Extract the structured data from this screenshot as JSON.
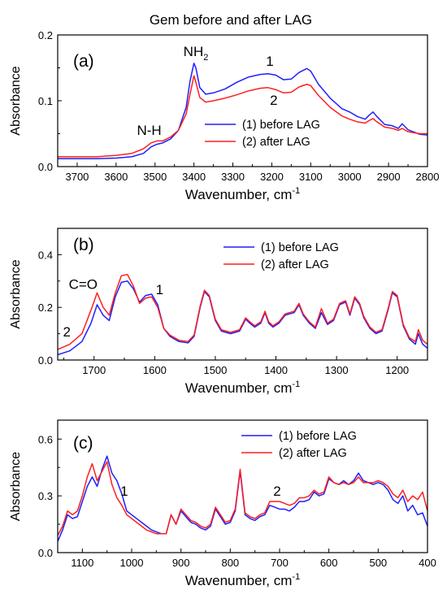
{
  "figure_title": "Gem before and after LAG",
  "chart_data": [
    {
      "type": "line",
      "panel": "(a)",
      "xlabel": "Wavenumber, cm",
      "xlabel_sup": "-1",
      "ylabel": "Absorbance",
      "xlim": [
        3750,
        2800
      ],
      "ylim": [
        0,
        0.2
      ],
      "xticks": [
        3700,
        3600,
        3500,
        3400,
        3300,
        3200,
        3100,
        3000,
        2900,
        2800
      ],
      "yticks": [
        0.0,
        0.1,
        0.2
      ],
      "ytick_labels": [
        "0.0",
        "0.1",
        "0.2"
      ],
      "legend_position": "center-right",
      "annotations": [
        {
          "text": "N-H",
          "x": 3515,
          "y": 0.048
        },
        {
          "text": "NH",
          "sub": "2",
          "x": 3395,
          "y": 0.168
        },
        {
          "text": "1",
          "x": 3205,
          "y": 0.153
        },
        {
          "text": "2",
          "x": 3195,
          "y": 0.094
        }
      ],
      "series": [
        {
          "name": "(1) before LAG",
          "color": "#1f1fff",
          "x": [
            3750,
            3650,
            3600,
            3560,
            3530,
            3510,
            3495,
            3480,
            3460,
            3440,
            3420,
            3410,
            3400,
            3395,
            3385,
            3370,
            3350,
            3320,
            3290,
            3260,
            3230,
            3210,
            3190,
            3170,
            3150,
            3130,
            3110,
            3100,
            3080,
            3050,
            3020,
            3000,
            2980,
            2960,
            2950,
            2940,
            2930,
            2910,
            2890,
            2875,
            2865,
            2850,
            2820,
            2800
          ],
          "y": [
            0.012,
            0.012,
            0.013,
            0.015,
            0.02,
            0.03,
            0.034,
            0.036,
            0.042,
            0.055,
            0.09,
            0.13,
            0.157,
            0.15,
            0.12,
            0.11,
            0.112,
            0.118,
            0.128,
            0.136,
            0.14,
            0.141,
            0.139,
            0.132,
            0.133,
            0.143,
            0.149,
            0.145,
            0.125,
            0.104,
            0.088,
            0.083,
            0.076,
            0.072,
            0.078,
            0.083,
            0.076,
            0.064,
            0.062,
            0.058,
            0.065,
            0.056,
            0.049,
            0.048
          ]
        },
        {
          "name": "(2) after LAG",
          "color": "#ff1f1f",
          "x": [
            3750,
            3650,
            3600,
            3560,
            3530,
            3510,
            3495,
            3480,
            3460,
            3440,
            3420,
            3410,
            3400,
            3395,
            3385,
            3370,
            3350,
            3320,
            3290,
            3260,
            3230,
            3210,
            3190,
            3170,
            3150,
            3130,
            3110,
            3100,
            3080,
            3050,
            3020,
            3000,
            2980,
            2960,
            2950,
            2940,
            2930,
            2910,
            2890,
            2875,
            2865,
            2850,
            2820,
            2800
          ],
          "y": [
            0.015,
            0.015,
            0.017,
            0.02,
            0.027,
            0.036,
            0.039,
            0.039,
            0.045,
            0.055,
            0.08,
            0.11,
            0.138,
            0.128,
            0.105,
            0.098,
            0.1,
            0.104,
            0.109,
            0.115,
            0.119,
            0.12,
            0.117,
            0.112,
            0.113,
            0.121,
            0.125,
            0.123,
            0.108,
            0.09,
            0.077,
            0.072,
            0.068,
            0.066,
            0.07,
            0.073,
            0.068,
            0.06,
            0.058,
            0.055,
            0.058,
            0.053,
            0.05,
            0.05
          ]
        }
      ]
    },
    {
      "type": "line",
      "panel": "(b)",
      "xlabel": "Wavenumber, cm",
      "xlabel_sup": "-1",
      "ylabel": "Absorbance",
      "xlim": [
        1760,
        1150
      ],
      "ylim": [
        0,
        0.5
      ],
      "xticks": [
        1700,
        1600,
        1500,
        1400,
        1300,
        1200
      ],
      "yticks": [
        0.0,
        0.2,
        0.4
      ],
      "ytick_labels": [
        "0.0",
        "0.2",
        "0.4"
      ],
      "legend_position": "top-right",
      "annotations": [
        {
          "text": "C=O",
          "x": 1718,
          "y": 0.27
        },
        {
          "text": "1",
          "x": 1592,
          "y": 0.25
        },
        {
          "text": "2",
          "x": 1745,
          "y": 0.09
        }
      ],
      "series": [
        {
          "name": "(1) before LAG",
          "color": "#1f1fff",
          "x": [
            1760,
            1740,
            1720,
            1705,
            1695,
            1685,
            1675,
            1665,
            1655,
            1645,
            1635,
            1625,
            1615,
            1605,
            1595,
            1585,
            1575,
            1560,
            1545,
            1535,
            1525,
            1518,
            1510,
            1500,
            1490,
            1475,
            1460,
            1450,
            1443,
            1435,
            1425,
            1418,
            1412,
            1405,
            1395,
            1385,
            1378,
            1370,
            1362,
            1355,
            1345,
            1335,
            1325,
            1315,
            1305,
            1295,
            1285,
            1278,
            1270,
            1262,
            1255,
            1245,
            1235,
            1225,
            1215,
            1208,
            1200,
            1190,
            1180,
            1170,
            1165,
            1158,
            1150
          ],
          "y": [
            0.02,
            0.035,
            0.07,
            0.14,
            0.21,
            0.17,
            0.15,
            0.24,
            0.295,
            0.3,
            0.27,
            0.22,
            0.245,
            0.25,
            0.21,
            0.12,
            0.09,
            0.07,
            0.065,
            0.09,
            0.2,
            0.26,
            0.24,
            0.15,
            0.11,
            0.1,
            0.11,
            0.155,
            0.14,
            0.125,
            0.14,
            0.18,
            0.14,
            0.125,
            0.14,
            0.17,
            0.175,
            0.18,
            0.21,
            0.17,
            0.14,
            0.12,
            0.18,
            0.135,
            0.15,
            0.21,
            0.22,
            0.17,
            0.235,
            0.21,
            0.16,
            0.12,
            0.1,
            0.11,
            0.19,
            0.255,
            0.24,
            0.13,
            0.08,
            0.06,
            0.1,
            0.06,
            0.045
          ]
        },
        {
          "name": "(2) after LAG",
          "color": "#ff1f1f",
          "x": [
            1760,
            1740,
            1720,
            1705,
            1695,
            1685,
            1675,
            1665,
            1655,
            1645,
            1635,
            1625,
            1615,
            1605,
            1595,
            1585,
            1575,
            1560,
            1545,
            1535,
            1525,
            1518,
            1510,
            1500,
            1490,
            1475,
            1460,
            1450,
            1443,
            1435,
            1425,
            1418,
            1412,
            1405,
            1395,
            1385,
            1378,
            1370,
            1362,
            1355,
            1345,
            1335,
            1325,
            1315,
            1305,
            1295,
            1285,
            1278,
            1270,
            1262,
            1255,
            1245,
            1235,
            1225,
            1215,
            1208,
            1200,
            1190,
            1180,
            1170,
            1165,
            1158,
            1150
          ],
          "y": [
            0.04,
            0.06,
            0.1,
            0.19,
            0.255,
            0.2,
            0.17,
            0.255,
            0.32,
            0.325,
            0.28,
            0.215,
            0.235,
            0.24,
            0.2,
            0.12,
            0.095,
            0.075,
            0.07,
            0.095,
            0.205,
            0.265,
            0.245,
            0.155,
            0.115,
            0.105,
            0.115,
            0.16,
            0.145,
            0.13,
            0.145,
            0.185,
            0.145,
            0.13,
            0.145,
            0.175,
            0.18,
            0.185,
            0.215,
            0.175,
            0.145,
            0.125,
            0.195,
            0.14,
            0.155,
            0.215,
            0.225,
            0.175,
            0.24,
            0.215,
            0.165,
            0.125,
            0.105,
            0.115,
            0.195,
            0.26,
            0.245,
            0.135,
            0.085,
            0.07,
            0.115,
            0.075,
            0.06
          ]
        }
      ]
    },
    {
      "type": "line",
      "panel": "(c)",
      "xlabel": "Wavenumber, cm",
      "xlabel_sup": "-1",
      "ylabel": "Absorbance",
      "xlim": [
        1150,
        400
      ],
      "ylim": [
        0,
        0.7
      ],
      "xticks": [
        1100,
        1000,
        900,
        800,
        700,
        600,
        500,
        400
      ],
      "yticks": [
        0.0,
        0.3,
        0.6
      ],
      "ytick_labels": [
        "0.0",
        "0.3",
        "0.6"
      ],
      "legend_position": "top-right",
      "annotations": [
        {
          "text": "1",
          "x": 1015,
          "y": 0.3
        },
        {
          "text": "2",
          "x": 705,
          "y": 0.3
        }
      ],
      "series": [
        {
          "name": "(1) before LAG",
          "color": "#1f1fff",
          "x": [
            1150,
            1140,
            1130,
            1120,
            1110,
            1100,
            1090,
            1080,
            1070,
            1060,
            1050,
            1040,
            1030,
            1020,
            1010,
            1000,
            990,
            980,
            970,
            960,
            950,
            940,
            930,
            920,
            910,
            900,
            890,
            880,
            870,
            860,
            850,
            840,
            830,
            820,
            810,
            800,
            790,
            780,
            770,
            760,
            750,
            740,
            730,
            720,
            710,
            700,
            690,
            680,
            670,
            660,
            650,
            640,
            630,
            620,
            610,
            600,
            590,
            580,
            570,
            560,
            550,
            540,
            530,
            520,
            510,
            500,
            490,
            480,
            470,
            460,
            450,
            440,
            430,
            420,
            410,
            400
          ],
          "y": [
            0.06,
            0.12,
            0.2,
            0.18,
            0.19,
            0.27,
            0.35,
            0.4,
            0.35,
            0.44,
            0.51,
            0.42,
            0.38,
            0.31,
            0.22,
            0.2,
            0.18,
            0.16,
            0.14,
            0.12,
            0.11,
            0.1,
            0.1,
            0.2,
            0.15,
            0.22,
            0.19,
            0.16,
            0.15,
            0.13,
            0.12,
            0.14,
            0.23,
            0.19,
            0.15,
            0.16,
            0.22,
            0.43,
            0.2,
            0.18,
            0.17,
            0.19,
            0.2,
            0.25,
            0.24,
            0.23,
            0.23,
            0.22,
            0.24,
            0.27,
            0.27,
            0.28,
            0.32,
            0.3,
            0.31,
            0.39,
            0.37,
            0.36,
            0.38,
            0.36,
            0.38,
            0.42,
            0.38,
            0.37,
            0.36,
            0.37,
            0.36,
            0.33,
            0.28,
            0.26,
            0.3,
            0.22,
            0.25,
            0.2,
            0.21,
            0.14
          ]
        },
        {
          "name": "(2) after LAG",
          "color": "#ff1f1f",
          "x": [
            1150,
            1140,
            1130,
            1120,
            1110,
            1100,
            1090,
            1080,
            1070,
            1060,
            1050,
            1040,
            1030,
            1020,
            1010,
            1000,
            990,
            980,
            970,
            960,
            950,
            940,
            930,
            920,
            910,
            900,
            890,
            880,
            870,
            860,
            850,
            840,
            830,
            820,
            810,
            800,
            790,
            780,
            770,
            760,
            750,
            740,
            730,
            720,
            710,
            700,
            690,
            680,
            670,
            660,
            650,
            640,
            630,
            620,
            610,
            600,
            590,
            580,
            570,
            560,
            550,
            540,
            530,
            520,
            510,
            500,
            490,
            480,
            470,
            460,
            450,
            440,
            430,
            420,
            410,
            400
          ],
          "y": [
            0.09,
            0.14,
            0.22,
            0.2,
            0.22,
            0.3,
            0.4,
            0.47,
            0.38,
            0.43,
            0.48,
            0.36,
            0.29,
            0.25,
            0.2,
            0.18,
            0.16,
            0.14,
            0.12,
            0.11,
            0.1,
            0.1,
            0.1,
            0.2,
            0.15,
            0.23,
            0.2,
            0.17,
            0.16,
            0.14,
            0.13,
            0.15,
            0.24,
            0.2,
            0.16,
            0.17,
            0.23,
            0.44,
            0.21,
            0.19,
            0.18,
            0.2,
            0.21,
            0.27,
            0.27,
            0.27,
            0.26,
            0.25,
            0.26,
            0.29,
            0.29,
            0.3,
            0.33,
            0.31,
            0.32,
            0.4,
            0.37,
            0.36,
            0.37,
            0.36,
            0.37,
            0.4,
            0.37,
            0.37,
            0.37,
            0.38,
            0.37,
            0.35,
            0.31,
            0.29,
            0.33,
            0.27,
            0.3,
            0.28,
            0.32,
            0.22
          ]
        }
      ]
    }
  ]
}
